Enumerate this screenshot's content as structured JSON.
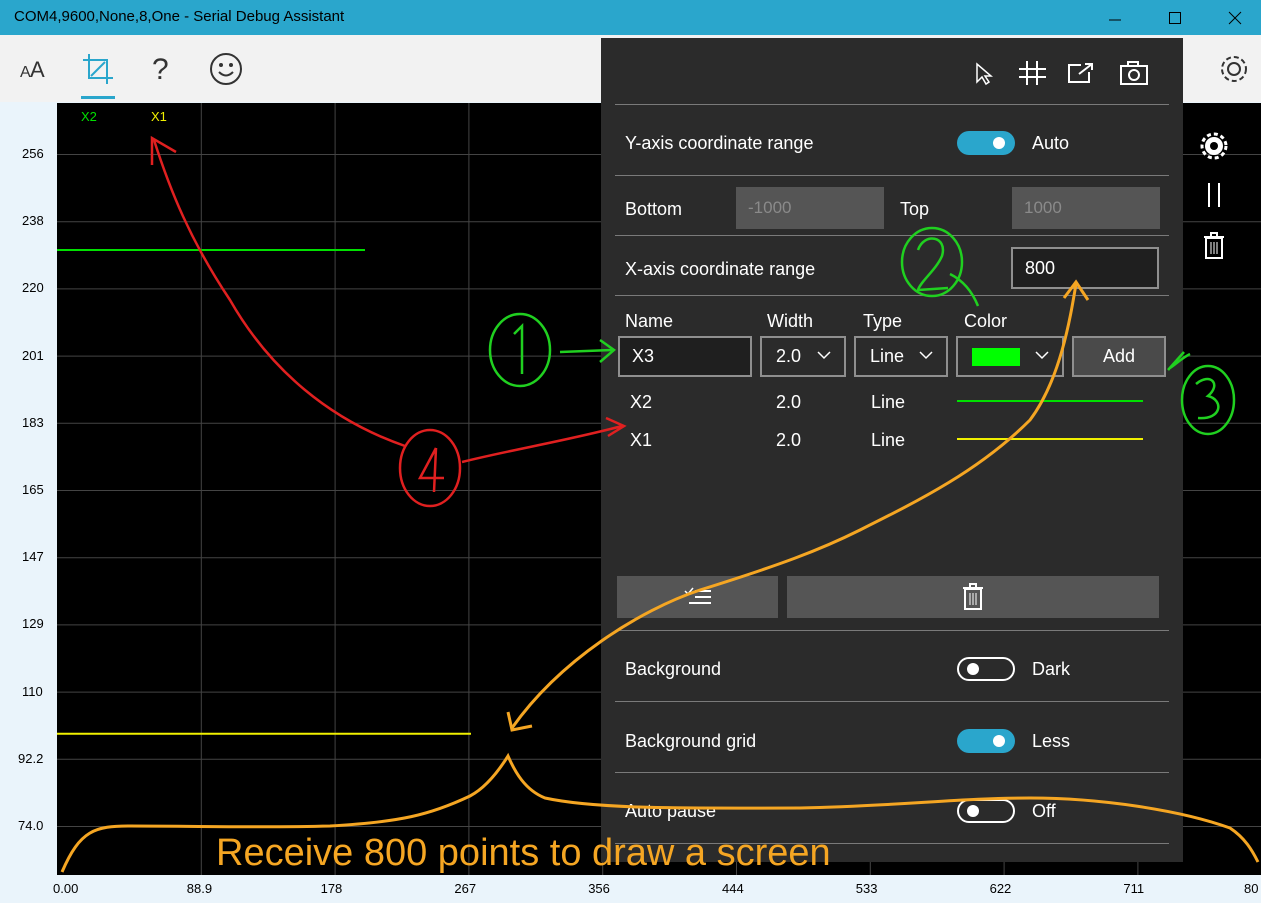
{
  "window": {
    "title": "COM4,9600,None,8,One - Serial Debug Assistant"
  },
  "toolbar": {
    "icons": [
      "font-size-icon",
      "plot-crop-icon",
      "help-icon",
      "smiley-icon"
    ],
    "right_icon": "settings-gear-icon"
  },
  "plot": {
    "legend": [
      {
        "name": "X2",
        "color": "#00e000"
      },
      {
        "name": "X1",
        "color": "#f0f000"
      }
    ],
    "y_ticks": [
      "256",
      "238",
      "220",
      "201",
      "183",
      "165",
      "147",
      "129",
      "110",
      "92.2",
      "74.0"
    ],
    "x_ticks": [
      "0.00",
      "88.9",
      "178",
      "267",
      "356",
      "444",
      "533",
      "622",
      "711",
      "80"
    ],
    "series": [
      {
        "name": "X2",
        "value": 230,
        "color": "#00e000"
      },
      {
        "name": "X1",
        "value": 99,
        "color": "#f0f000"
      }
    ]
  },
  "panel": {
    "top_icons": [
      "pointer-icon",
      "grid-adjust-icon",
      "export-icon",
      "camera-icon"
    ],
    "y_range_label": "Y-axis coordinate range",
    "y_range_state": "Auto",
    "bottom_label": "Bottom",
    "bottom_placeholder": "-1000",
    "top_label": "Top",
    "top_placeholder": "1000",
    "x_range_label": "X-axis coordinate range",
    "x_range_value": "800",
    "headers": {
      "name": "Name",
      "width": "Width",
      "type": "Type",
      "color": "Color"
    },
    "new_series": {
      "name": "X3",
      "width": "2.0",
      "type": "Line",
      "color": "#00ff00"
    },
    "add_label": "Add",
    "rows": [
      {
        "name": "X2",
        "width": "2.0",
        "type": "Line",
        "color": "#00e000"
      },
      {
        "name": "X1",
        "width": "2.0",
        "type": "Line",
        "color": "#f0f000"
      }
    ],
    "background_label": "Background",
    "background_state": "Dark",
    "grid_label": "Background grid",
    "grid_state": "Less",
    "autopause_label": "Auto pause",
    "autopause_state": "Off"
  },
  "annotation": {
    "caption": "Receive 800 points to draw a screen"
  }
}
